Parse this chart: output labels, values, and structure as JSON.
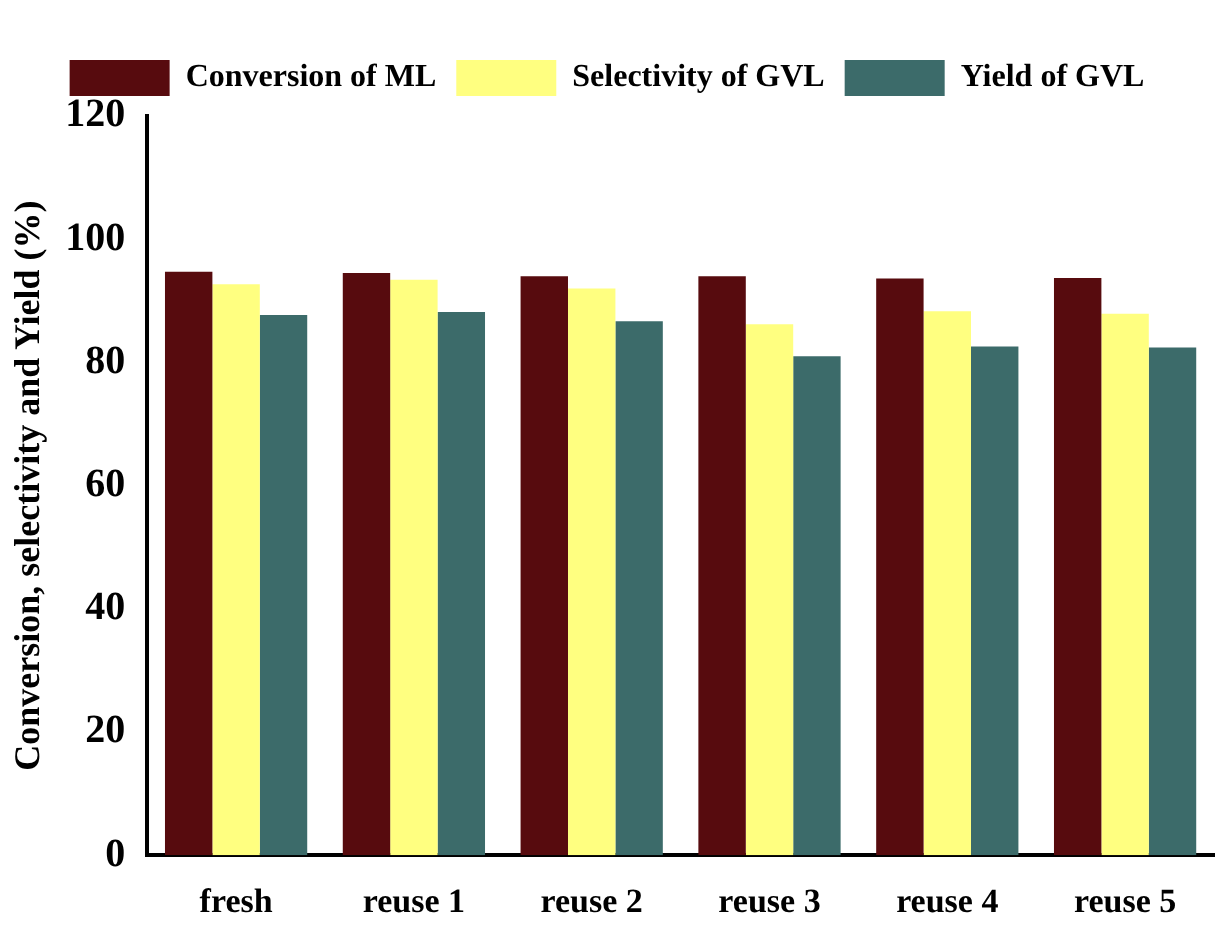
{
  "chart_data": {
    "type": "bar",
    "ylabel": "Conversion, selectivity and Yield (%)",
    "categories": [
      "fresh",
      "reuse 1",
      "reuse 2",
      "reuse 3",
      "reuse 4",
      "reuse 5"
    ],
    "series": [
      {
        "name": "Conversion of ML",
        "color": "#570b0e",
        "values": [
          94.7,
          94.5,
          94.0,
          94.0,
          93.6,
          93.7
        ]
      },
      {
        "name": "Selectivity of GVL",
        "color": "#ffff80",
        "values": [
          92.7,
          93.4,
          92.0,
          86.2,
          88.3,
          87.9
        ]
      },
      {
        "name": "Yield of GVL",
        "color": "#3c6b6a",
        "values": [
          87.7,
          88.2,
          86.7,
          81.0,
          82.6,
          82.4
        ]
      }
    ],
    "ylim": [
      0,
      120
    ],
    "yticks": [
      0,
      20,
      40,
      60,
      80,
      100,
      120
    ],
    "grid": false,
    "legend": "top"
  }
}
